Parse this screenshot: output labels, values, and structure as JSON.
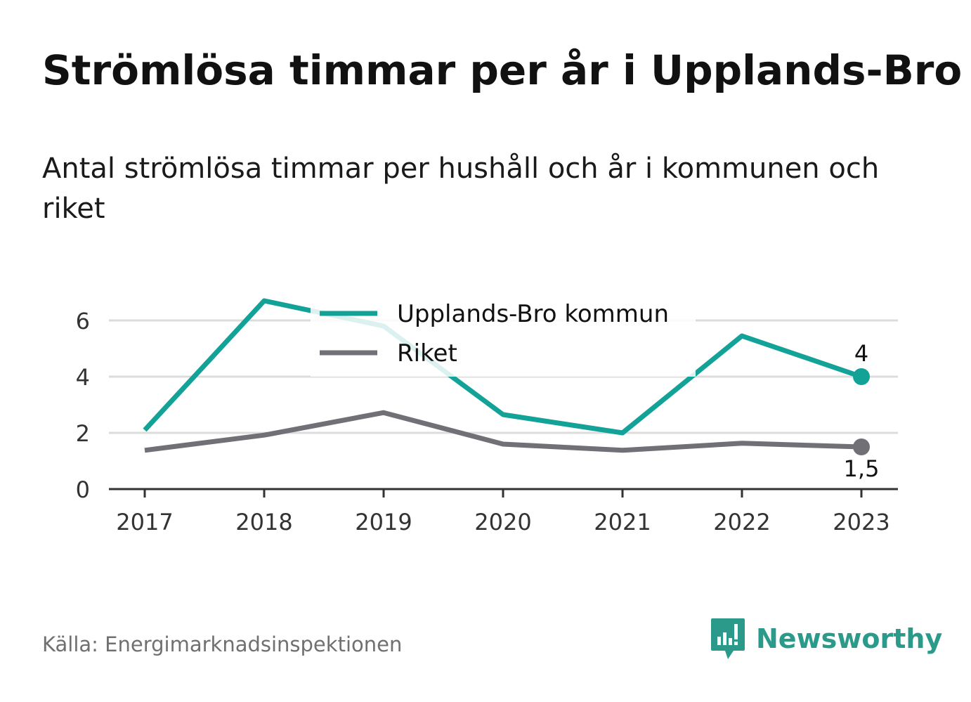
{
  "title": "Strömlösa timmar per år i Upplands-Bro",
  "subtitle": "Antal strömlösa timmar per hushåll och år i kommunen och riket",
  "source": "Källa: Energimarknadsinspektionen",
  "brand": {
    "name": "Newsworthy",
    "icon": "newsworthy-logo-icon"
  },
  "colors": {
    "kommun": "#13a297",
    "riket": "#707076",
    "grid": "#dcdcdc",
    "axis": "#333333"
  },
  "chart_data": {
    "type": "line",
    "x": [
      "2017",
      "2018",
      "2019",
      "2020",
      "2021",
      "2022",
      "2023"
    ],
    "yticks": [
      "0",
      "2",
      "4",
      "6"
    ],
    "ylim": [
      0,
      7
    ],
    "grid": true,
    "legend_position": "top-center",
    "series": [
      {
        "name": "Upplands-Bro kommun",
        "values": [
          2.1,
          6.7,
          5.8,
          2.65,
          2.0,
          5.45,
          4.0
        ],
        "end_label": "4"
      },
      {
        "name": "Riket",
        "values": [
          1.38,
          1.92,
          2.72,
          1.6,
          1.38,
          1.63,
          1.5
        ],
        "end_label": "1,5"
      }
    ]
  }
}
